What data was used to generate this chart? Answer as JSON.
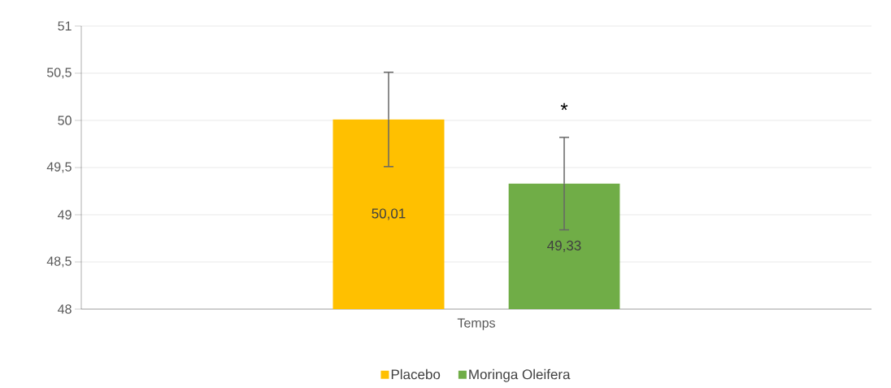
{
  "chart_data": {
    "type": "bar",
    "categories": [
      "Temps"
    ],
    "series": [
      {
        "name": "Placebo",
        "color": "#ffc000",
        "values": [
          50.01
        ],
        "errors": [
          0.5
        ],
        "value_labels": [
          "50,01"
        ]
      },
      {
        "name": "Moringa Oleifera",
        "color": "#70ad47",
        "values": [
          49.33
        ],
        "errors": [
          0.49
        ],
        "value_labels": [
          "49,33"
        ]
      }
    ],
    "ylim": [
      48,
      51
    ],
    "yticks": [
      {
        "value": 48,
        "label": "48"
      },
      {
        "value": 48.5,
        "label": "48,5"
      },
      {
        "value": 49,
        "label": "49"
      },
      {
        "value": 49.5,
        "label": "49,5"
      },
      {
        "value": 50,
        "label": "50"
      },
      {
        "value": 50.5,
        "label": "50,5"
      },
      {
        "value": 51,
        "label": "51"
      }
    ],
    "annotations": [
      "*"
    ],
    "grid": "y",
    "legend": "bottom"
  }
}
